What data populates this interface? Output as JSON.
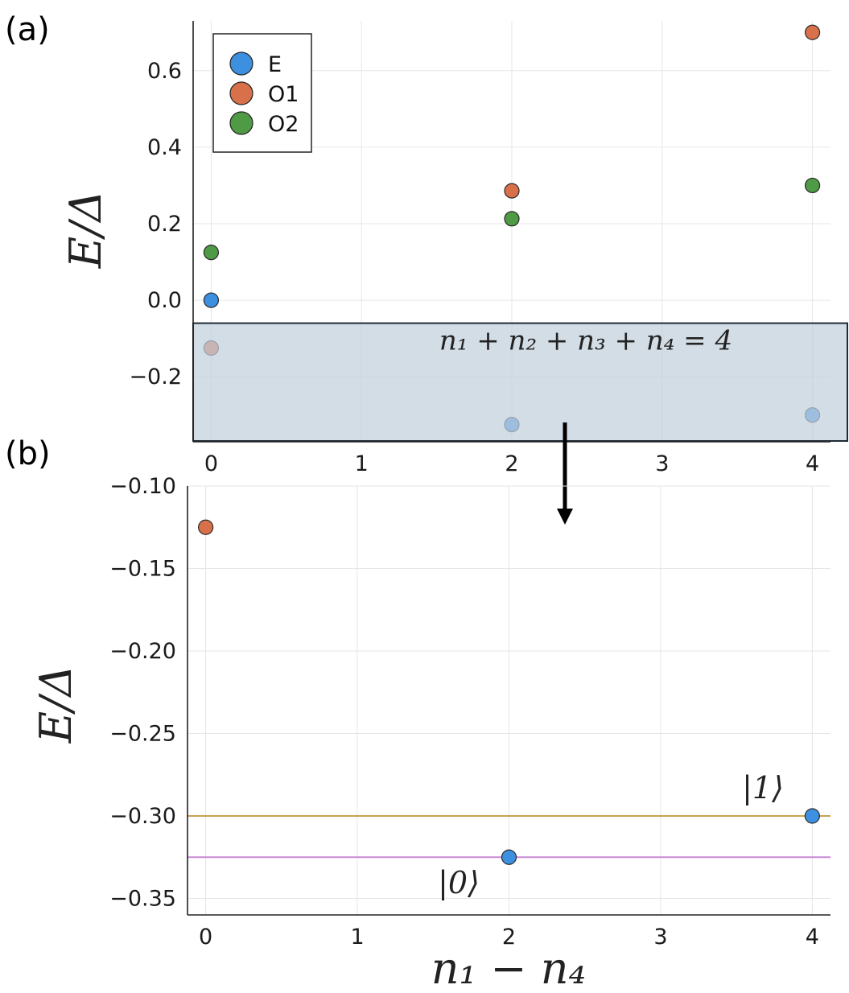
{
  "chart_data": [
    {
      "panel": "(a)",
      "type": "scatter",
      "ylabel": "E/Δ",
      "xlim": [
        -0.12,
        4.12
      ],
      "ylim": [
        -0.37,
        0.73
      ],
      "xticks": [
        0,
        1,
        2,
        3,
        4
      ],
      "yticks": [
        -0.2,
        0.0,
        0.2,
        0.4,
        0.6
      ],
      "xtick_labels": [
        "0",
        "1",
        "2",
        "3",
        "4"
      ],
      "ytick_labels": [
        "−0.2",
        "0.0",
        "0.2",
        "0.4",
        "0.6"
      ],
      "grid": true,
      "legend": "top-left",
      "series": [
        {
          "name": "E",
          "color": "#3d8fe0",
          "points": [
            {
              "x": 0,
              "y": 0.0
            },
            {
              "x": 2,
              "y": -0.325
            },
            {
              "x": 4,
              "y": -0.3
            }
          ]
        },
        {
          "name": "O1",
          "color": "#d8704a",
          "points": [
            {
              "x": 0,
              "y": -0.125
            },
            {
              "x": 2,
              "y": 0.286
            },
            {
              "x": 4,
              "y": 0.7
            }
          ]
        },
        {
          "name": "O2",
          "color": "#4f9a45",
          "points": [
            {
              "x": 0,
              "y": 0.125
            },
            {
              "x": 2,
              "y": 0.213
            },
            {
              "x": 4,
              "y": 0.3
            }
          ]
        }
      ],
      "highlight_band": {
        "y_range": [
          -0.37,
          -0.06
        ],
        "label": "n₁ + n₂ + n₃ + n₄ = 4"
      }
    },
    {
      "panel": "(b)",
      "type": "scatter",
      "xlabel": "n₁ − n₄",
      "ylabel": "E/Δ",
      "xlim": [
        -0.12,
        4.12
      ],
      "ylim": [
        -0.36,
        -0.1
      ],
      "xticks": [
        0,
        1,
        2,
        3,
        4
      ],
      "yticks": [
        -0.1,
        -0.15,
        -0.2,
        -0.25,
        -0.3,
        -0.35
      ],
      "xtick_labels": [
        "0",
        "1",
        "2",
        "3",
        "4"
      ],
      "ytick_labels": [
        "−0.10",
        "−0.15",
        "−0.20",
        "−0.25",
        "−0.30",
        "−0.35"
      ],
      "grid": true,
      "series": [
        {
          "name": "O1",
          "color": "#d8704a",
          "points": [
            {
              "x": 0,
              "y": -0.125
            }
          ]
        },
        {
          "name": "E",
          "color": "#3d8fe0",
          "points": [
            {
              "x": 2,
              "y": -0.325
            },
            {
              "x": 4,
              "y": -0.3
            }
          ]
        }
      ],
      "hlines": [
        {
          "y": -0.3,
          "color": "#c9a24d",
          "label": "|1⟩"
        },
        {
          "y": -0.325,
          "color": "#c98ad6",
          "label": "|0⟩"
        }
      ]
    }
  ]
}
